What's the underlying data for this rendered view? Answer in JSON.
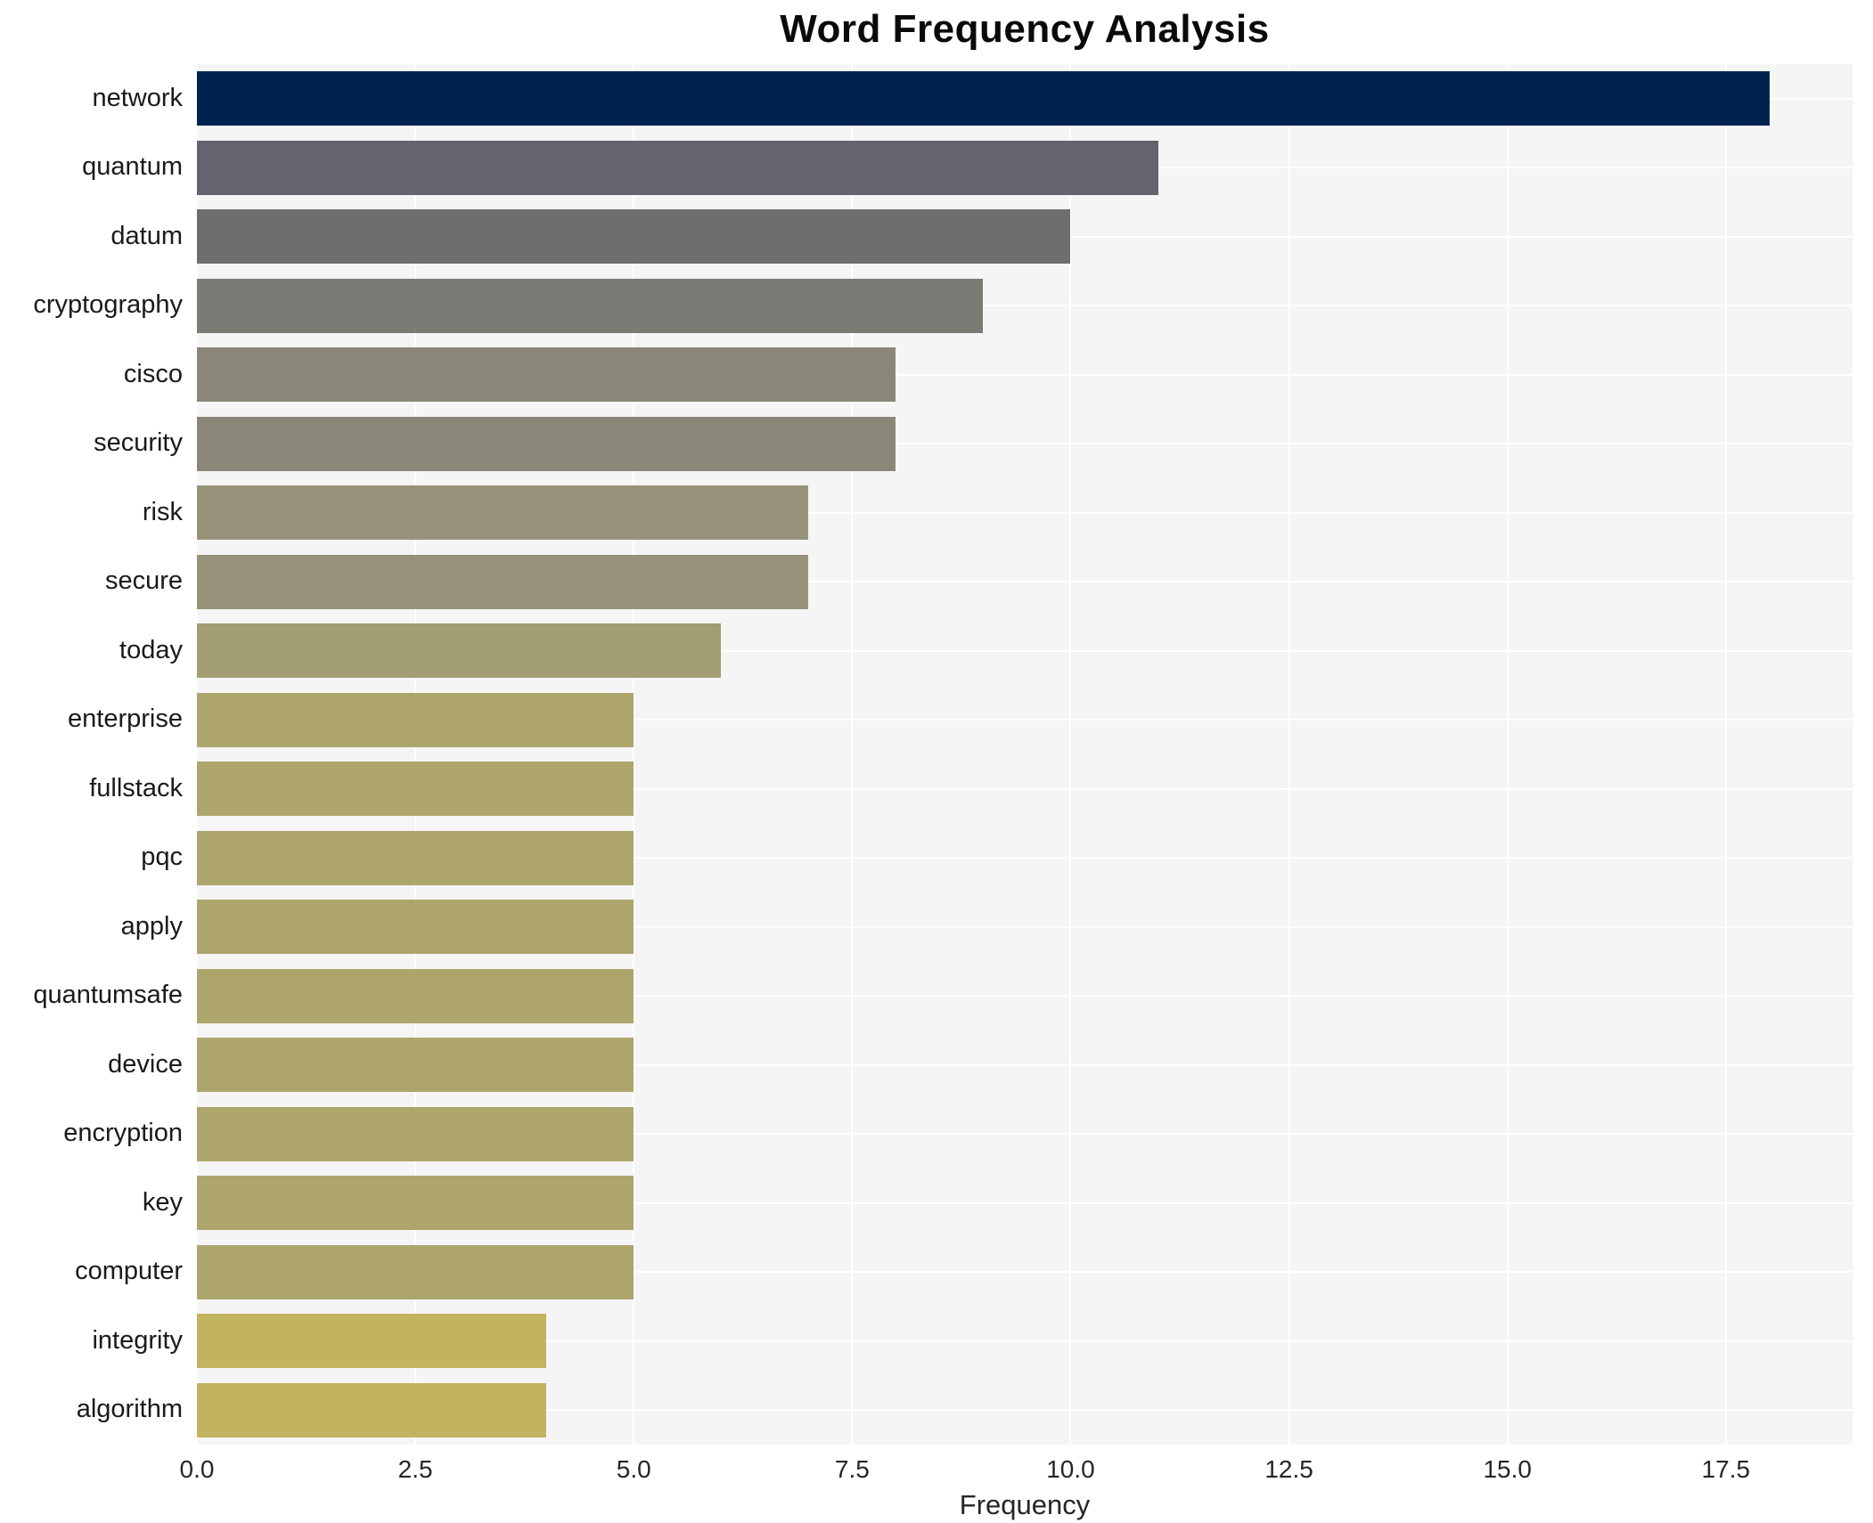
{
  "page": {
    "title": "Word Frequency Analysis"
  },
  "chart_data": {
    "type": "bar",
    "orientation": "horizontal",
    "title": "Word Frequency Analysis",
    "xlabel": "Frequency",
    "ylabel": "",
    "categories": [
      "network",
      "quantum",
      "datum",
      "cryptography",
      "cisco",
      "security",
      "risk",
      "secure",
      "today",
      "enterprise",
      "fullstack",
      "pqc",
      "apply",
      "quantumsafe",
      "device",
      "encryption",
      "key",
      "computer",
      "integrity",
      "algorithm"
    ],
    "values": [
      18,
      11,
      10,
      9,
      8,
      8,
      7,
      7,
      6,
      5,
      5,
      5,
      5,
      5,
      5,
      5,
      5,
      5,
      4,
      4
    ],
    "bar_colors": [
      "#00224e",
      "#63646f",
      "#6e6e71",
      "#7b7a74",
      "#8a8779",
      "#8a8779",
      "#97937a",
      "#97937a",
      "#a29d72",
      "#aea56d",
      "#aea56d",
      "#aea56d",
      "#aea56d",
      "#aea56d",
      "#aea56d",
      "#aea56d",
      "#aea56d",
      "#aea56d",
      "#c2b45f",
      "#c2b45f"
    ],
    "xticks": [
      0.0,
      2.5,
      5.0,
      7.5,
      10.0,
      12.5,
      15.0,
      17.5
    ],
    "xtick_labels": [
      "0.0",
      "2.5",
      "5.0",
      "7.5",
      "10.0",
      "12.5",
      "15.0",
      "17.5"
    ],
    "xlim": [
      0,
      18.95
    ],
    "grid": true,
    "legend": false,
    "plot_background": "#f5f5f6",
    "grid_color": "#ffffff"
  }
}
